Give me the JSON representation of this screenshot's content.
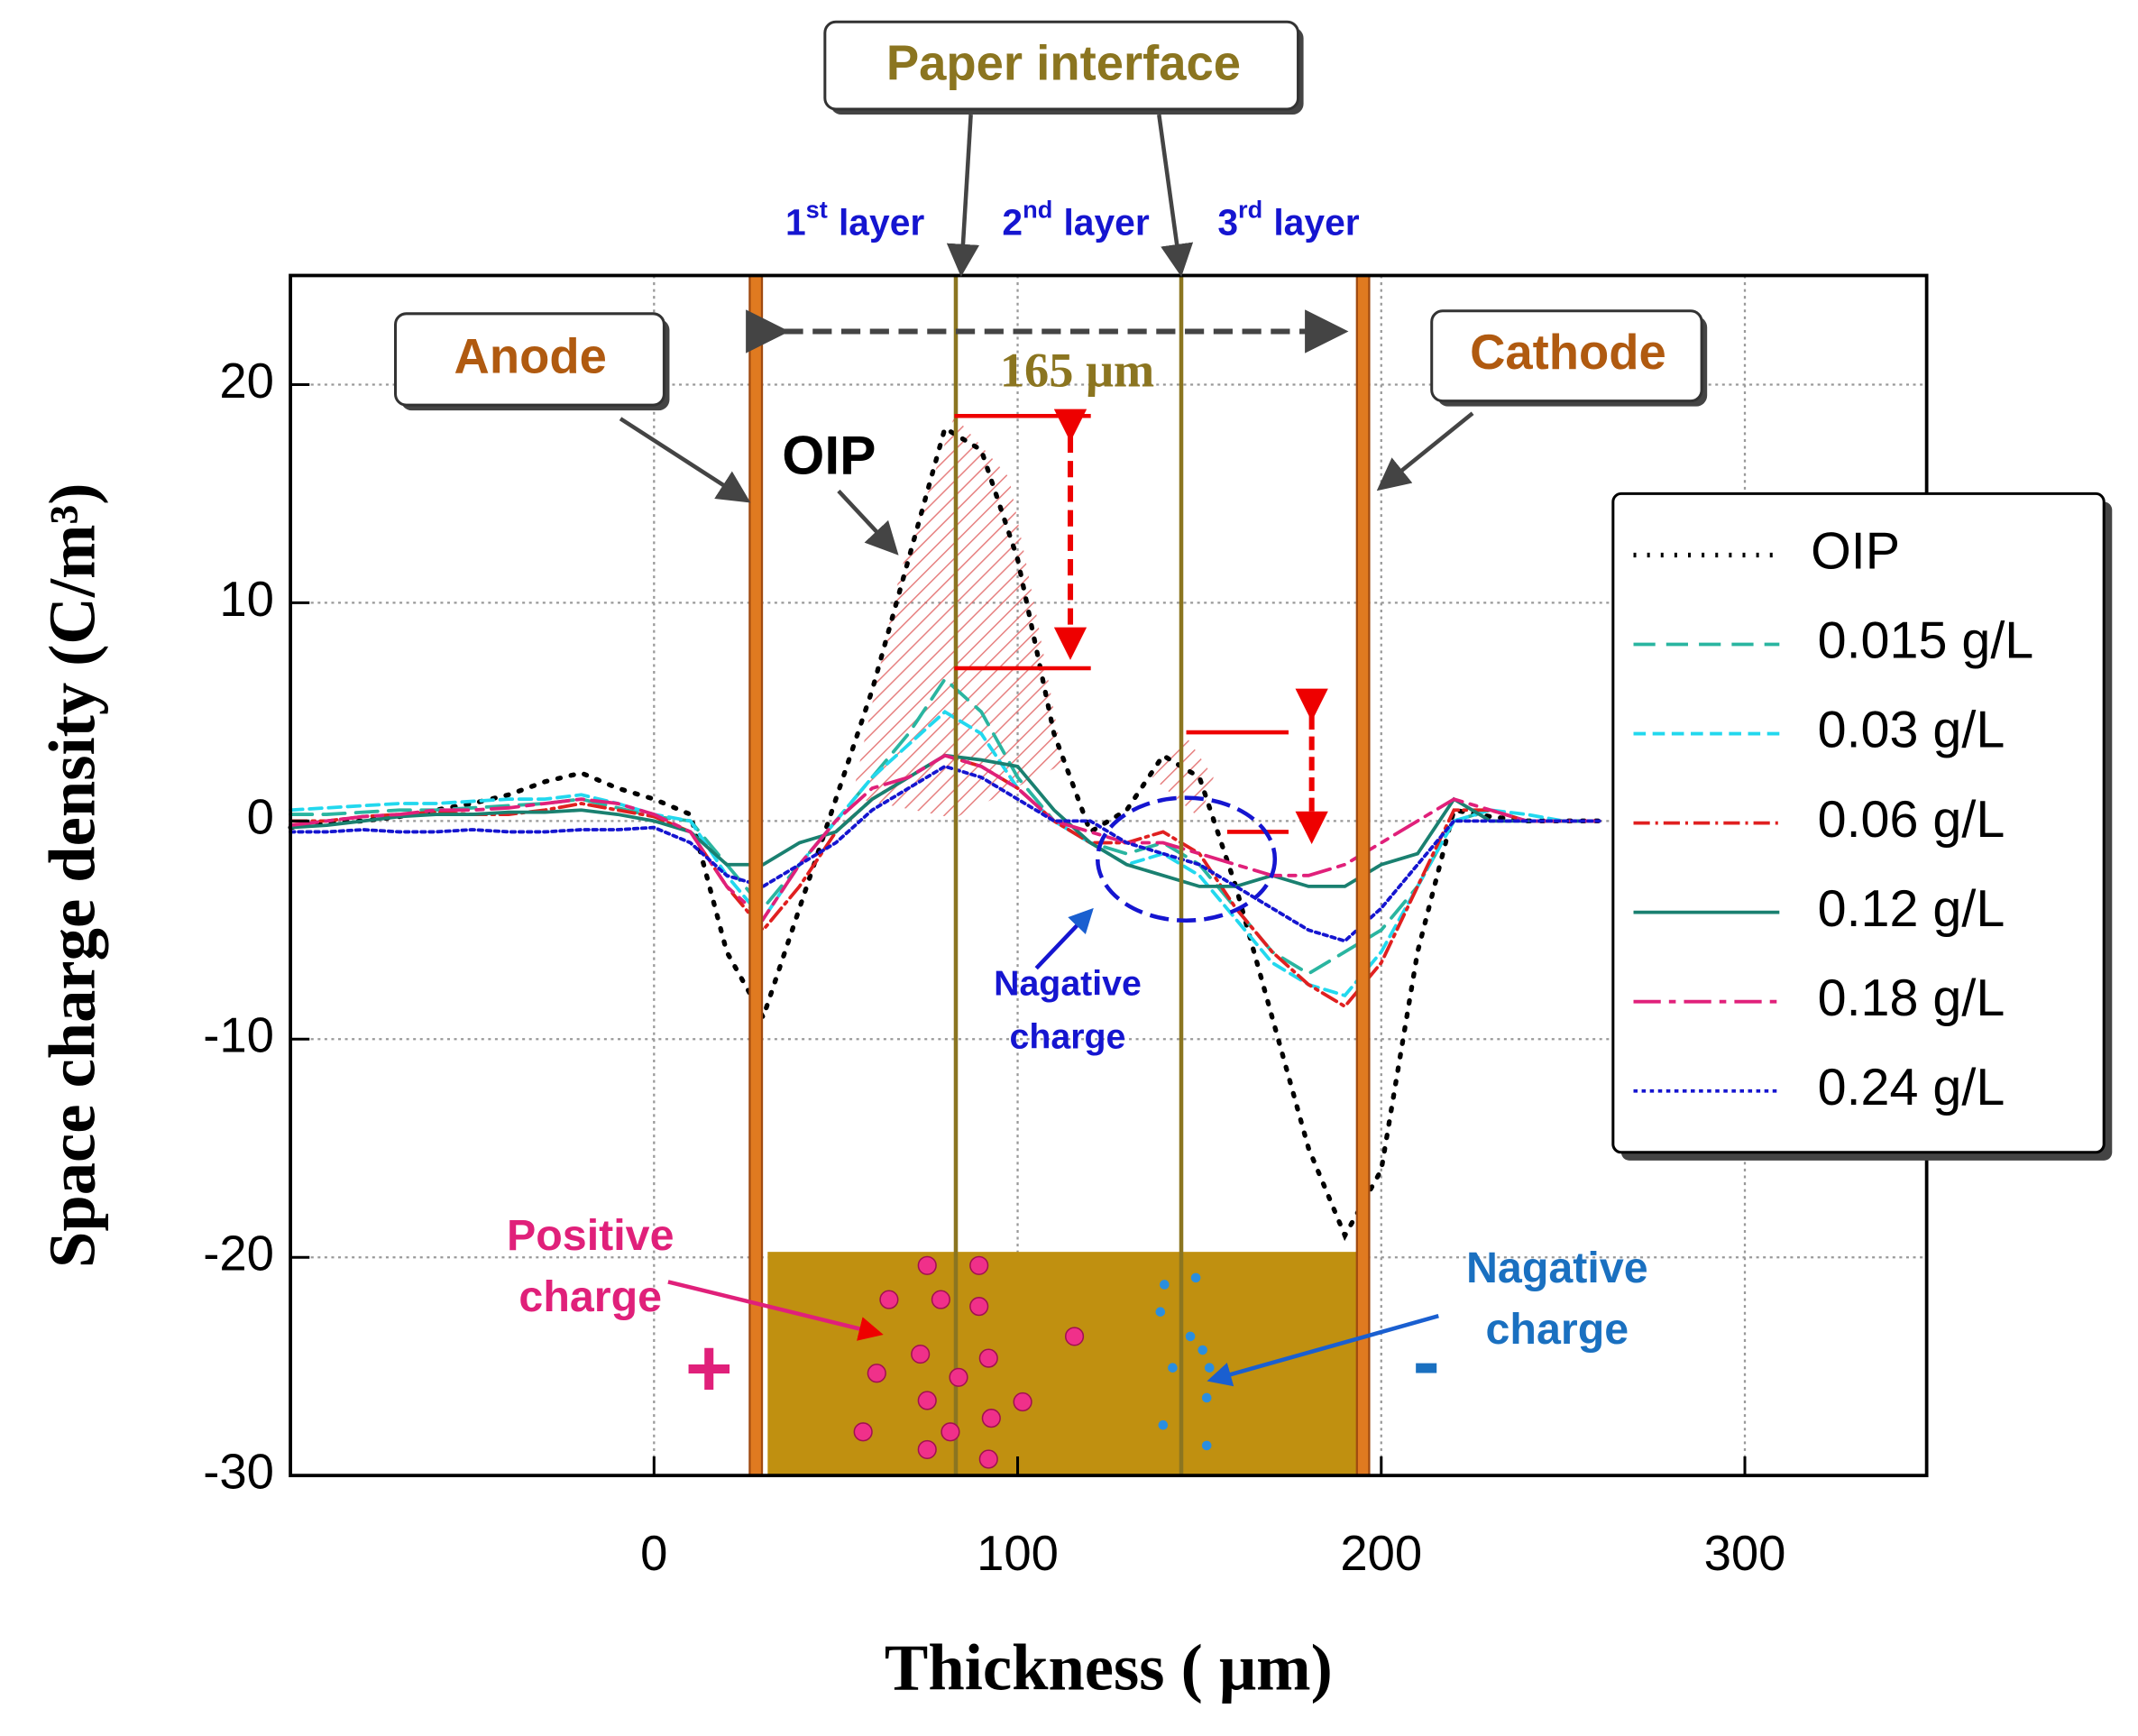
{
  "chart_data": {
    "type": "line",
    "x_label": "Thickness ( μm)",
    "y_label": "Space charge density (C/m³)",
    "xlim": [
      -100,
      350
    ],
    "ylim": [
      -30,
      25
    ],
    "xticks": [
      0,
      100,
      200,
      300
    ],
    "yticks": [
      -30,
      -20,
      -10,
      0,
      10,
      20
    ],
    "grid": true,
    "x": [
      -100,
      -90,
      -80,
      -70,
      -60,
      -50,
      -40,
      -30,
      -20,
      -10,
      0,
      10,
      20,
      30,
      40,
      50,
      60,
      70,
      80,
      90,
      100,
      110,
      120,
      130,
      140,
      150,
      160,
      170,
      180,
      190,
      200,
      210,
      220,
      230,
      240,
      250,
      260
    ],
    "series": [
      {
        "name": "OIP",
        "color": "#000000",
        "values": [
          -0.3,
          -0.1,
          0,
          0.2,
          0.5,
          0.8,
          1.2,
          1.8,
          2.2,
          1.5,
          1.0,
          0.3,
          -6,
          -9,
          -4,
          1,
          6,
          12,
          18,
          17,
          12,
          4,
          -0.5,
          0.5,
          3,
          2,
          -3,
          -9,
          -15,
          -19,
          -16,
          -6,
          0.5,
          0.2,
          0,
          0,
          0
        ]
      },
      {
        "name": "0.015 g/L",
        "color": "#2ab5a0",
        "values": [
          0.3,
          0.3,
          0.4,
          0.5,
          0.5,
          0.6,
          0.7,
          0.8,
          1.0,
          0.6,
          0.2,
          0,
          -2,
          -4,
          -2,
          0,
          2,
          4,
          6.5,
          5,
          2,
          0,
          -1,
          -1.5,
          -1,
          -2,
          -4,
          -6,
          -7,
          -6,
          -5,
          -3,
          0,
          0.5,
          0,
          0,
          0
        ]
      },
      {
        "name": "0.03 g/L",
        "color": "#22d8ee",
        "values": [
          0.5,
          0.6,
          0.7,
          0.8,
          0.8,
          0.9,
          1.0,
          1.0,
          1.2,
          0.8,
          0.3,
          0,
          -2.5,
          -4.5,
          -2,
          0,
          2,
          3.5,
          5,
          4,
          1.5,
          0,
          -1,
          -2,
          -1.5,
          -2.5,
          -4.5,
          -6.5,
          -7.5,
          -8,
          -6,
          -3,
          0,
          0.5,
          0.3,
          0,
          0
        ]
      },
      {
        "name": "0.06 g/L",
        "color": "#e02020",
        "values": [
          0,
          0,
          0.2,
          0.3,
          0.4,
          0.3,
          0.3,
          0.5,
          0.8,
          0.5,
          0.2,
          -0.5,
          -3,
          -5,
          -3,
          -0.5,
          1,
          2,
          3,
          2.5,
          1.5,
          0,
          -1,
          -1,
          -0.5,
          -1.5,
          -4,
          -6,
          -7.5,
          -8.5,
          -6.5,
          -3,
          0.5,
          0.5,
          0,
          0,
          0
        ]
      },
      {
        "name": "0.12 g/L",
        "color": "#1a8070",
        "values": [
          -0.3,
          -0.2,
          0,
          0.2,
          0.3,
          0.3,
          0.4,
          0.4,
          0.5,
          0.3,
          0,
          -0.5,
          -2,
          -2,
          -1,
          -0.5,
          1,
          2,
          3,
          2.8,
          2.5,
          0.5,
          -1,
          -2,
          -2.5,
          -3,
          -3,
          -2.5,
          -3,
          -3,
          -2,
          -1.5,
          1,
          0,
          0,
          0,
          0
        ]
      },
      {
        "name": "0.18 g/L",
        "color": "#e0207a",
        "values": [
          -0.2,
          0,
          0.2,
          0.3,
          0.5,
          0.5,
          0.6,
          0.8,
          1.0,
          0.8,
          0.3,
          -0.5,
          -3,
          -4.5,
          -2,
          0,
          1.5,
          2,
          3,
          2.5,
          1.5,
          0,
          -0.5,
          -1,
          -1,
          -1.5,
          -2,
          -2.5,
          -2.5,
          -2,
          -1,
          0,
          1,
          0.5,
          0,
          0,
          0
        ]
      },
      {
        "name": "0.24 g/L",
        "color": "#1515d0",
        "values": [
          -0.5,
          -0.5,
          -0.4,
          -0.5,
          -0.5,
          -0.4,
          -0.5,
          -0.5,
          -0.4,
          -0.4,
          -0.3,
          -1,
          -2.5,
          -3,
          -2,
          -1,
          0.5,
          1.5,
          2.5,
          2,
          1,
          0,
          0,
          -1,
          -1.5,
          -2,
          -3,
          -4,
          -5,
          -5.5,
          -4,
          -2,
          0,
          0,
          0,
          0,
          0
        ]
      }
    ],
    "electrodes": [
      28,
      195
    ],
    "interfaces": [
      83,
      145
    ],
    "annotations": {
      "paper": "Paper interface",
      "anode": "Anode",
      "cathode": "Cathode",
      "thickness": "165 μm",
      "oip": "OIP",
      "neg1": [
        "Nagative",
        "charge"
      ],
      "pos": [
        "Positive",
        "charge"
      ],
      "neg2": [
        "Nagative",
        "charge"
      ],
      "plus": "+",
      "minus": "-"
    },
    "layers": [
      {
        "n": "1",
        "sup": "st",
        "text": "layer"
      },
      {
        "n": "2",
        "sup": "nd",
        "text": "layer"
      },
      {
        "n": "3",
        "sup": "rd",
        "text": "layer"
      }
    ]
  }
}
